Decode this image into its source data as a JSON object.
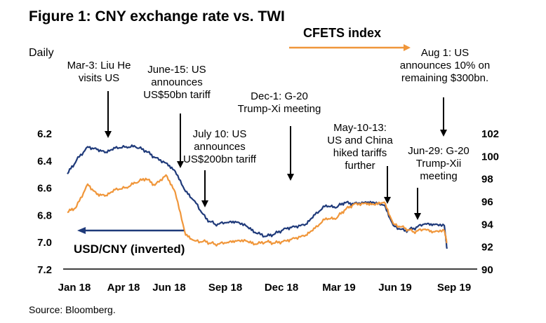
{
  "chart_data": {
    "type": "line",
    "title": "Figure 1: CNY exchange rate vs. TWI",
    "frequency_label": "Daily",
    "source": "Source: Bloomberg.",
    "x_tick_labels": [
      "Jan 18",
      "Apr 18",
      "Jun 18",
      "Sep 18",
      "Dec 18",
      "Mar 19",
      "Jun 19",
      "Sep 19"
    ],
    "x_range": [
      "2018-01",
      "2019-09"
    ],
    "left_axis": {
      "ticks": [
        "6.2",
        "6.4",
        "6.6",
        "6.8",
        "7.0",
        "7.2"
      ],
      "range": [
        6.2,
        7.2
      ],
      "inverted": true
    },
    "right_axis": {
      "ticks": [
        "102",
        "100",
        "98",
        "96",
        "94",
        "92",
        "90"
      ],
      "range": [
        90,
        102
      ]
    },
    "colors": {
      "usdcny": "#1f3a7a",
      "cfets": "#f0963a"
    },
    "legend": {
      "usdcny": "USD/CNY (inverted)",
      "cfets": "CFETS index"
    },
    "series": [
      {
        "name": "USD/CNY (inverted)",
        "axis": "left",
        "x": [
          "2018-01-01",
          "2018-01-15",
          "2018-02-01",
          "2018-02-15",
          "2018-03-01",
          "2018-03-15",
          "2018-04-01",
          "2018-04-15",
          "2018-05-01",
          "2018-05-15",
          "2018-06-01",
          "2018-06-15",
          "2018-07-01",
          "2018-07-15",
          "2018-08-01",
          "2018-08-15",
          "2018-09-01",
          "2018-09-15",
          "2018-10-01",
          "2018-10-15",
          "2018-11-01",
          "2018-11-15",
          "2018-12-01",
          "2018-12-15",
          "2019-01-01",
          "2019-01-15",
          "2019-02-01",
          "2019-02-15",
          "2019-03-01",
          "2019-03-15",
          "2019-04-01",
          "2019-04-15",
          "2019-05-01",
          "2019-05-15",
          "2019-06-01",
          "2019-06-15",
          "2019-07-01",
          "2019-07-15",
          "2019-08-01",
          "2019-08-05"
        ],
        "values": [
          6.5,
          6.4,
          6.3,
          6.32,
          6.34,
          6.31,
          6.3,
          6.3,
          6.33,
          6.38,
          6.42,
          6.48,
          6.63,
          6.7,
          6.83,
          6.87,
          6.86,
          6.85,
          6.88,
          6.93,
          6.96,
          6.94,
          6.9,
          6.89,
          6.87,
          6.8,
          6.73,
          6.75,
          6.71,
          6.72,
          6.71,
          6.71,
          6.73,
          6.88,
          6.92,
          6.9,
          6.87,
          6.87,
          6.88,
          7.05
        ]
      },
      {
        "name": "CFETS index",
        "axis": "right",
        "x": [
          "2018-01-01",
          "2018-01-15",
          "2018-02-01",
          "2018-02-15",
          "2018-03-01",
          "2018-03-15",
          "2018-04-01",
          "2018-04-15",
          "2018-05-01",
          "2018-05-15",
          "2018-06-01",
          "2018-06-15",
          "2018-07-01",
          "2018-07-15",
          "2018-08-01",
          "2018-08-15",
          "2018-09-01",
          "2018-09-15",
          "2018-10-01",
          "2018-10-15",
          "2018-11-01",
          "2018-11-15",
          "2018-12-01",
          "2018-12-15",
          "2019-01-01",
          "2019-01-15",
          "2019-02-01",
          "2019-02-15",
          "2019-03-01",
          "2019-03-15",
          "2019-04-01",
          "2019-04-15",
          "2019-05-01",
          "2019-05-15",
          "2019-06-01",
          "2019-06-15",
          "2019-07-01",
          "2019-07-15",
          "2019-08-01",
          "2019-08-05"
        ],
        "values": [
          95.0,
          95.5,
          97.5,
          96.6,
          96.5,
          97.0,
          97.2,
          97.6,
          98.0,
          97.4,
          98.3,
          96.8,
          93.0,
          92.5,
          92.4,
          92.2,
          92.3,
          92.5,
          92.5,
          92.2,
          92.4,
          92.3,
          92.5,
          92.7,
          93.0,
          93.6,
          94.5,
          94.4,
          95.2,
          95.7,
          95.8,
          95.7,
          95.9,
          94.0,
          93.6,
          93.3,
          93.5,
          93.3,
          93.4,
          92.3
        ]
      }
    ],
    "annotations": [
      {
        "key": "mar3",
        "lines": [
          "Mar-3: Liu He",
          "visits US"
        ],
        "date": "2018-03-03"
      },
      {
        "key": "jun15",
        "lines": [
          "June-15: US",
          "announces",
          "US$50bn tariff"
        ],
        "date": "2018-06-15"
      },
      {
        "key": "jul10",
        "lines": [
          "July 10: US",
          "announces",
          "US$200bn tariff"
        ],
        "date": "2018-07-10"
      },
      {
        "key": "dec1",
        "lines": [
          "Dec-1: G-20",
          "Trump-Xi meeting"
        ],
        "date": "2018-12-01"
      },
      {
        "key": "may10",
        "lines": [
          "May-10-13:",
          "US and China",
          "hiked tariffs",
          "further"
        ],
        "date": "2019-05-10"
      },
      {
        "key": "aug1",
        "lines": [
          "Aug 1: US",
          "announces 10% on",
          "remaining $300bn."
        ],
        "date": "2019-08-01"
      },
      {
        "key": "jun29",
        "lines": [
          "Jun-29: G-20",
          "Trump-Xii",
          "meeting"
        ],
        "date": "2019-06-29"
      }
    ]
  }
}
